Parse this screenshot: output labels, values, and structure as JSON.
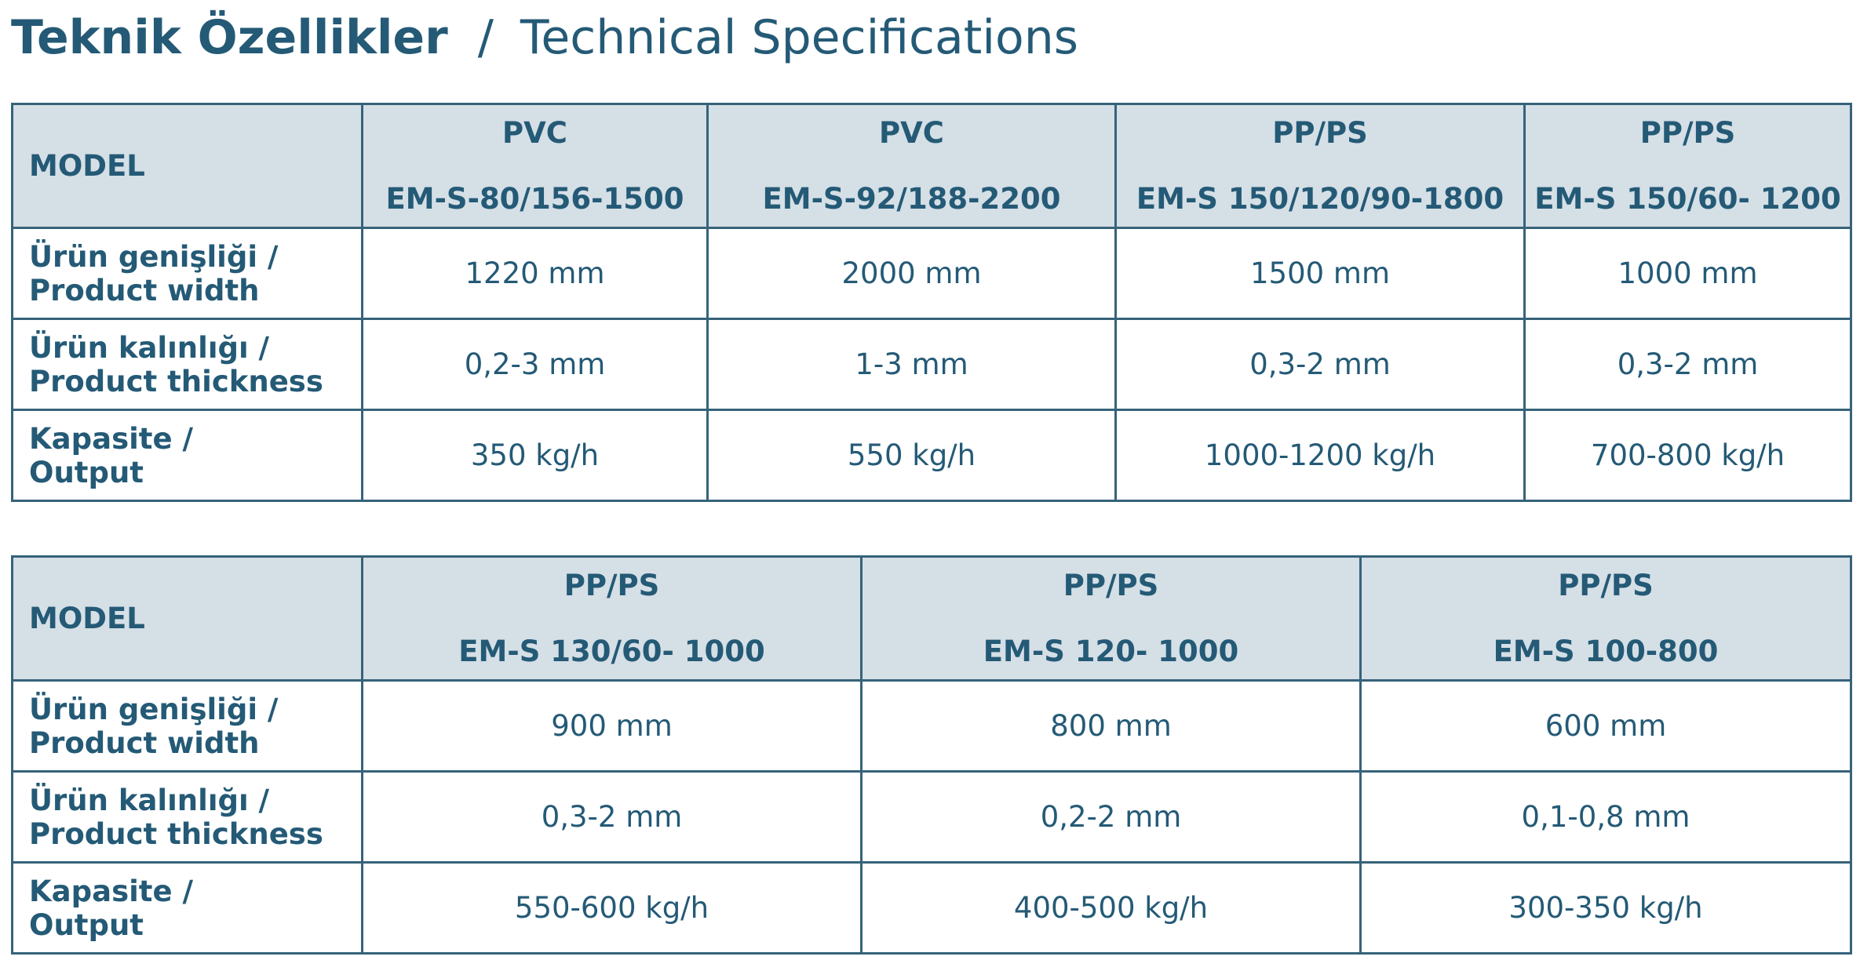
{
  "title": {
    "turkish": "Teknik Özellikler",
    "separator": "/",
    "english": "Technical Specifications"
  },
  "row_labels": {
    "model": "MODEL",
    "width_tr": "Ürün genişliği /",
    "width_en": "Product width",
    "thickness_tr": "Ürün kalınlığı /",
    "thickness_en": "Product thickness",
    "output_tr": "Kapasite /",
    "output_en": "Output"
  },
  "tables": [
    {
      "columns": [
        {
          "material": "PVC",
          "model": "EM-S-80/156-1500",
          "width": "1220 mm",
          "thickness": "0,2-3 mm",
          "output": "350 kg/h"
        },
        {
          "material": "PVC",
          "model": "EM-S-92/188-2200",
          "width": "2000 mm",
          "thickness": "1-3 mm",
          "output": "550 kg/h"
        },
        {
          "material": "PP/PS",
          "model": "EM-S 150/120/90-1800",
          "width": "1500 mm",
          "thickness": "0,3-2 mm",
          "output": "1000-1200 kg/h"
        },
        {
          "material": "PP/PS",
          "model": "EM-S 150/60- 1200",
          "width": "1000 mm",
          "thickness": "0,3-2 mm",
          "output": "700-800 kg/h"
        }
      ]
    },
    {
      "columns": [
        {
          "material": "PP/PS",
          "model": "EM-S 130/60- 1000",
          "width": "900 mm",
          "thickness": "0,3-2 mm",
          "output": "550-600 kg/h"
        },
        {
          "material": "PP/PS",
          "model": "EM-S 120- 1000",
          "width": "800 mm",
          "thickness": "0,2-2 mm",
          "output": "400-500 kg/h"
        },
        {
          "material": "PP/PS",
          "model": "EM-S 100-800",
          "width": "600 mm",
          "thickness": "0,1-0,8 mm",
          "output": "300-350 kg/h"
        }
      ]
    }
  ],
  "colors": {
    "text": "#245a76",
    "header_bg": "#d5dfe6",
    "border": "#36637a"
  }
}
